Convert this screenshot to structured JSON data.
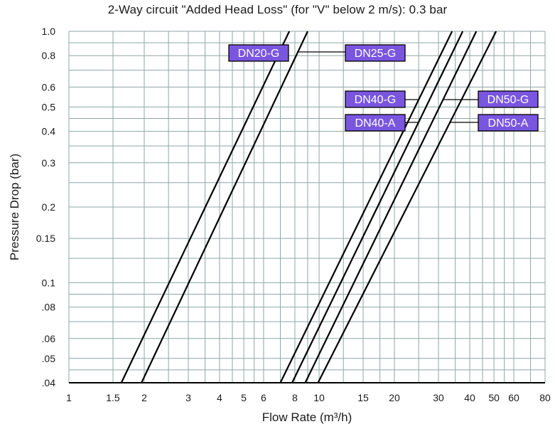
{
  "chart_data": {
    "type": "line",
    "title": "2-Way circuit \"Added Head Loss\" (for \"V\" below 2 m/s): 0.3 bar",
    "xlabel": "Flow Rate (m³/h)",
    "ylabel": "Pressure Drop (bar)",
    "x_scale": "log",
    "y_scale": "log",
    "xlim": [
      1,
      80
    ],
    "ylim": [
      0.04,
      1.0
    ],
    "grid": true,
    "x_ticks": [
      {
        "value": 1,
        "label": "1"
      },
      {
        "value": 1.5,
        "label": "1.5"
      },
      {
        "value": 2,
        "label": "2"
      },
      {
        "value": 3,
        "label": "3"
      },
      {
        "value": 4,
        "label": "4"
      },
      {
        "value": 5,
        "label": "5"
      },
      {
        "value": 6,
        "label": "6"
      },
      {
        "value": 8,
        "label": "8"
      },
      {
        "value": 10,
        "label": "10"
      },
      {
        "value": 15,
        "label": "15"
      },
      {
        "value": 20,
        "label": "20"
      },
      {
        "value": 30,
        "label": "30"
      },
      {
        "value": 40,
        "label": "40"
      },
      {
        "value": 50,
        "label": "50"
      },
      {
        "value": 60,
        "label": "60"
      },
      {
        "value": 80,
        "label": "80"
      }
    ],
    "y_ticks": [
      {
        "value": 1.0,
        "label": "1.0"
      },
      {
        "value": 0.8,
        "label": "0.8"
      },
      {
        "value": 0.6,
        "label": "0.6"
      },
      {
        "value": 0.5,
        "label": "0.5"
      },
      {
        "value": 0.4,
        "label": "0.4"
      },
      {
        "value": 0.3,
        "label": "0.3"
      },
      {
        "value": 0.2,
        "label": "0.2"
      },
      {
        "value": 0.15,
        "label": "0.15"
      },
      {
        "value": 0.1,
        "label": "0.1"
      },
      {
        "value": 0.08,
        "label": ".08"
      },
      {
        "value": 0.06,
        "label": ".06"
      },
      {
        "value": 0.05,
        "label": ".05"
      },
      {
        "value": 0.04,
        "label": ".04"
      }
    ],
    "x_grid_values": [
      1,
      1.5,
      2,
      2.5,
      3,
      3.5,
      4,
      4.5,
      5,
      5.5,
      6,
      7,
      8,
      9,
      10,
      12.5,
      15,
      17.5,
      20,
      25,
      30,
      35,
      40,
      45,
      50,
      55,
      60,
      70,
      80
    ],
    "y_grid_values": [
      1.0,
      0.9,
      0.8,
      0.7,
      0.6,
      0.5,
      0.45,
      0.4,
      0.35,
      0.3,
      0.25,
      0.2,
      0.15,
      0.125,
      0.1,
      0.09,
      0.08,
      0.07,
      0.06,
      0.05,
      0.045,
      0.04
    ],
    "series": [
      {
        "name": "DN20-G",
        "x": [
          1.62,
          7.6
        ],
        "y": [
          0.04,
          1.0
        ]
      },
      {
        "name": "DN25-G",
        "x": [
          1.95,
          9.0
        ],
        "y": [
          0.04,
          1.0
        ]
      },
      {
        "name": "DN40-G",
        "x": [
          7.0,
          34.0
        ],
        "y": [
          0.04,
          1.0
        ]
      },
      {
        "name": "DN40-A",
        "x": [
          7.8,
          37.5
        ],
        "y": [
          0.04,
          1.0
        ]
      },
      {
        "name": "DN50-G",
        "x": [
          8.8,
          42.5
        ],
        "y": [
          0.04,
          1.0
        ]
      },
      {
        "name": "DN50-A",
        "x": [
          9.9,
          51.0
        ],
        "y": [
          0.04,
          1.0
        ]
      }
    ],
    "colors": {
      "label_fill": "#7a55e0",
      "label_text": "#ffffff",
      "grid": "#8fa6a6",
      "line": "#000000"
    }
  }
}
